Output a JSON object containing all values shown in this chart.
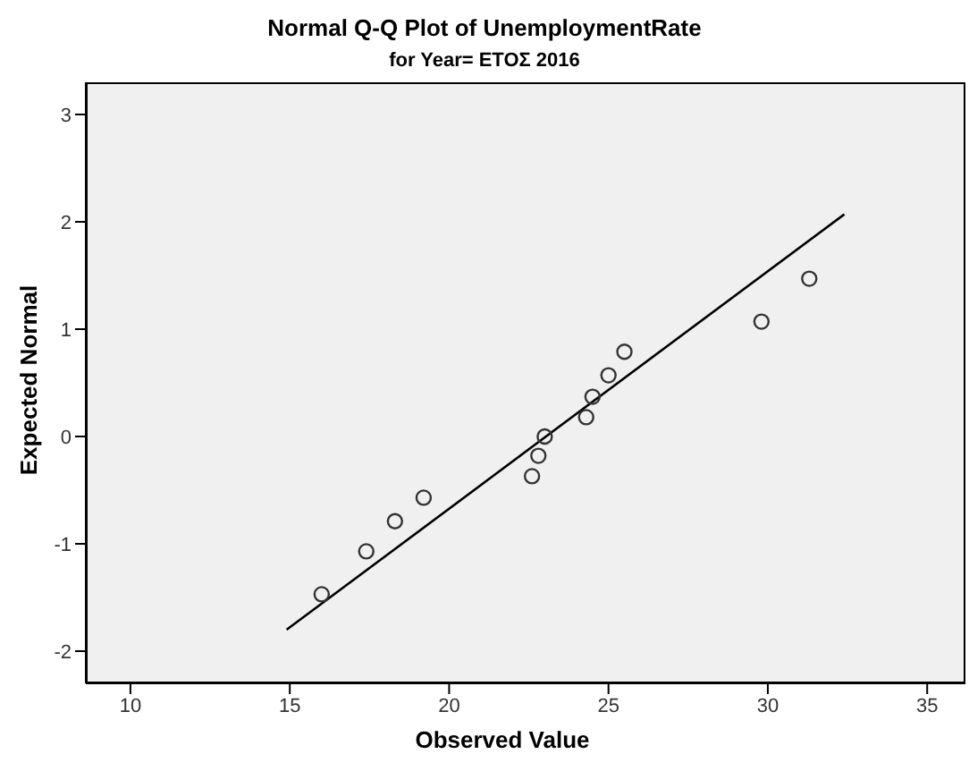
{
  "chart_data": {
    "type": "scatter",
    "title": "Normal Q-Q Plot of UnemploymentRate",
    "subtitle": "for Year= ΕΤΟΣ 2016",
    "xlabel": "Observed Value",
    "ylabel": "Expected Normal",
    "xlim": [
      8.6,
      36.2
    ],
    "xticks": [
      10,
      15,
      20,
      25,
      30,
      35
    ],
    "ylim": [
      -2.3,
      3.3
    ],
    "yticks": [
      -2,
      -1,
      0,
      1,
      2,
      3
    ],
    "grid": false,
    "legend": false,
    "series": [
      {
        "marker": "circle",
        "color": "#333333",
        "x": [
          16.0,
          17.4,
          18.3,
          19.2,
          22.6,
          22.8,
          23.0,
          24.3,
          24.5,
          25.0,
          25.5,
          29.8,
          31.3
        ],
        "values": [
          -1.47,
          -1.07,
          -0.79,
          -0.57,
          -0.37,
          -0.18,
          0,
          0.18,
          0.37,
          0.57,
          0.79,
          1.07,
          1.47
        ]
      },
      {
        "type": "line",
        "marker": "none",
        "color": "#000000",
        "x": [
          14.9,
          32.4
        ],
        "values": [
          -1.8,
          2.07
        ]
      }
    ]
  }
}
